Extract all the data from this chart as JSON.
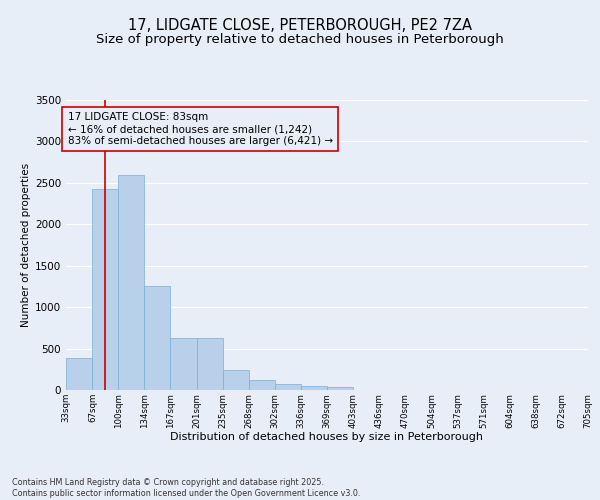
{
  "title_line1": "17, LIDGATE CLOSE, PETERBOROUGH, PE2 7ZA",
  "title_line2": "Size of property relative to detached houses in Peterborough",
  "xlabel": "Distribution of detached houses by size in Peterborough",
  "ylabel": "Number of detached properties",
  "footer_line1": "Contains HM Land Registry data © Crown copyright and database right 2025.",
  "footer_line2": "Contains public sector information licensed under the Open Government Licence v3.0.",
  "bar_left_edges": [
    33,
    67,
    100,
    134,
    167,
    201,
    235,
    268,
    302,
    336,
    369,
    403,
    436,
    470,
    504,
    537,
    571,
    604,
    638,
    672
  ],
  "bar_widths": [
    34,
    33,
    34,
    33,
    34,
    34,
    33,
    34,
    34,
    33,
    34,
    33,
    34,
    34,
    33,
    34,
    33,
    34,
    34,
    33
  ],
  "bar_heights": [
    390,
    2420,
    2600,
    1250,
    630,
    630,
    240,
    120,
    70,
    50,
    40,
    0,
    0,
    0,
    0,
    0,
    0,
    0,
    0,
    0
  ],
  "bar_color": "#b8d0ea",
  "bar_edgecolor": "#7aafd4",
  "property_line_x": 83,
  "property_line_color": "#cc0000",
  "annotation_text": "17 LIDGATE CLOSE: 83sqm\n← 16% of detached houses are smaller (1,242)\n83% of semi-detached houses are larger (6,421) →",
  "annotation_box_edgecolor": "#cc0000",
  "ylim": [
    0,
    3500
  ],
  "yticks": [
    0,
    500,
    1000,
    1500,
    2000,
    2500,
    3000,
    3500
  ],
  "tick_labels": [
    "33sqm",
    "67sqm",
    "100sqm",
    "134sqm",
    "167sqm",
    "201sqm",
    "235sqm",
    "268sqm",
    "302sqm",
    "336sqm",
    "369sqm",
    "403sqm",
    "436sqm",
    "470sqm",
    "504sqm",
    "537sqm",
    "571sqm",
    "604sqm",
    "638sqm",
    "672sqm",
    "705sqm"
  ],
  "background_color": "#e8eef8",
  "grid_color": "#ffffff",
  "title_fontsize": 10.5,
  "subtitle_fontsize": 9.5,
  "annotation_fontsize": 7.5,
  "xlabel_fontsize": 8,
  "ylabel_fontsize": 7.5,
  "footer_fontsize": 5.8
}
